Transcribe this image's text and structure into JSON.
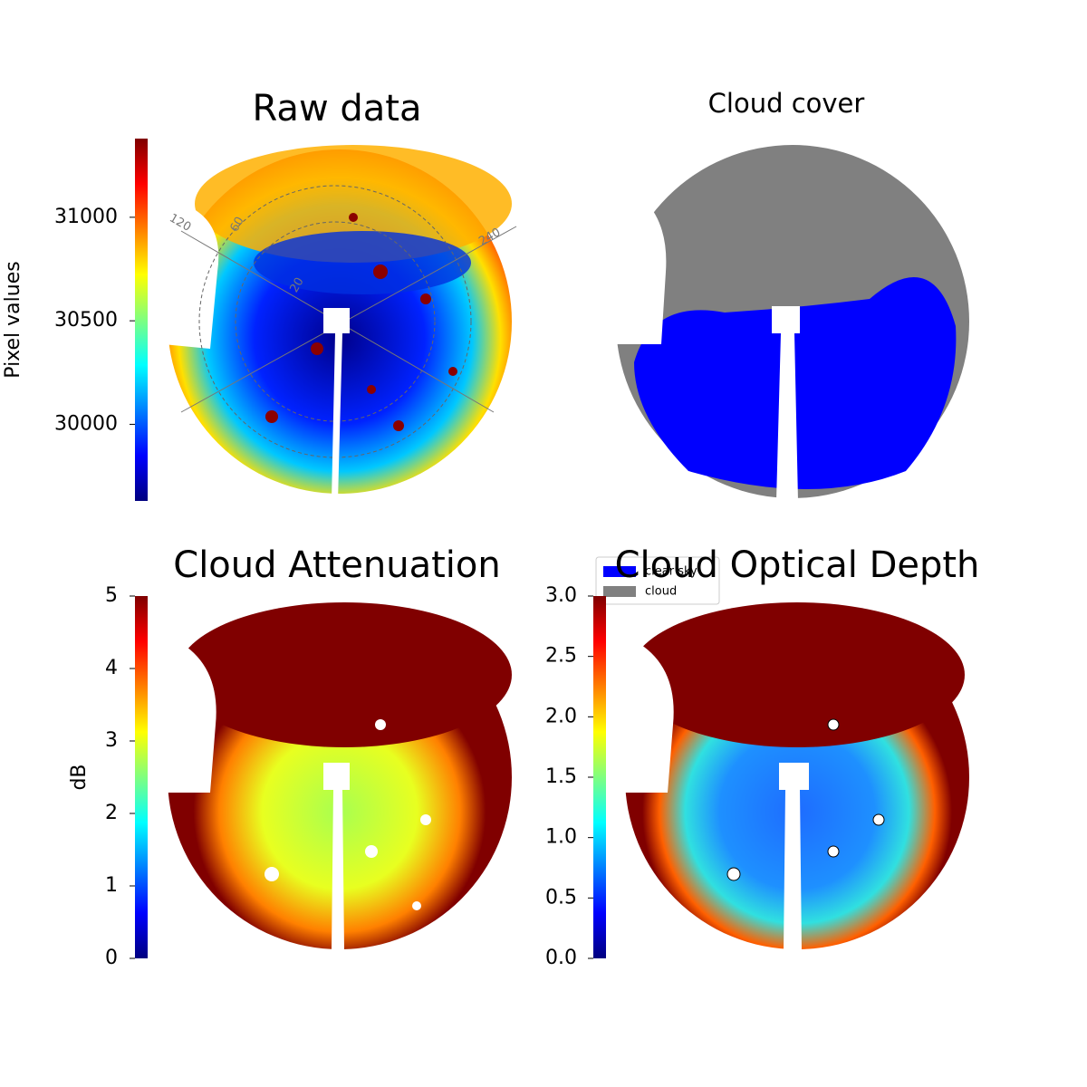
{
  "chart_data": [
    {
      "type": "image",
      "title": "Raw data",
      "colormap": "jet",
      "colorbar": {
        "label": "Pixel values",
        "ylim": [
          29630,
          31380
        ],
        "yticks": [
          30000,
          30500,
          31000
        ]
      },
      "polar_labels": [
        "120",
        "60",
        "240",
        "20"
      ]
    },
    {
      "type": "image",
      "title": "Cloud cover",
      "series": [
        {
          "name": "clear sky",
          "color": "#0000ff"
        },
        {
          "name": "cloud",
          "color": "#808080"
        }
      ]
    },
    {
      "type": "image",
      "title": "Cloud Attenuation",
      "colormap": "jet",
      "colorbar": {
        "label": "dB",
        "ylim": [
          0,
          5
        ],
        "yticks": [
          0,
          1,
          2,
          3,
          4,
          5
        ]
      }
    },
    {
      "type": "image",
      "title": "Cloud Optical Depth",
      "colormap": "jet",
      "colorbar": {
        "ylim": [
          0,
          3
        ],
        "yticks": [
          {
            "value": 0,
            "label": "0.0"
          },
          0.5,
          {
            "value": 1,
            "label": "1.0"
          },
          1.5,
          {
            "value": 2,
            "label": "2.0"
          },
          2.5,
          {
            "value": 3,
            "label": "3.0"
          }
        ]
      }
    }
  ]
}
